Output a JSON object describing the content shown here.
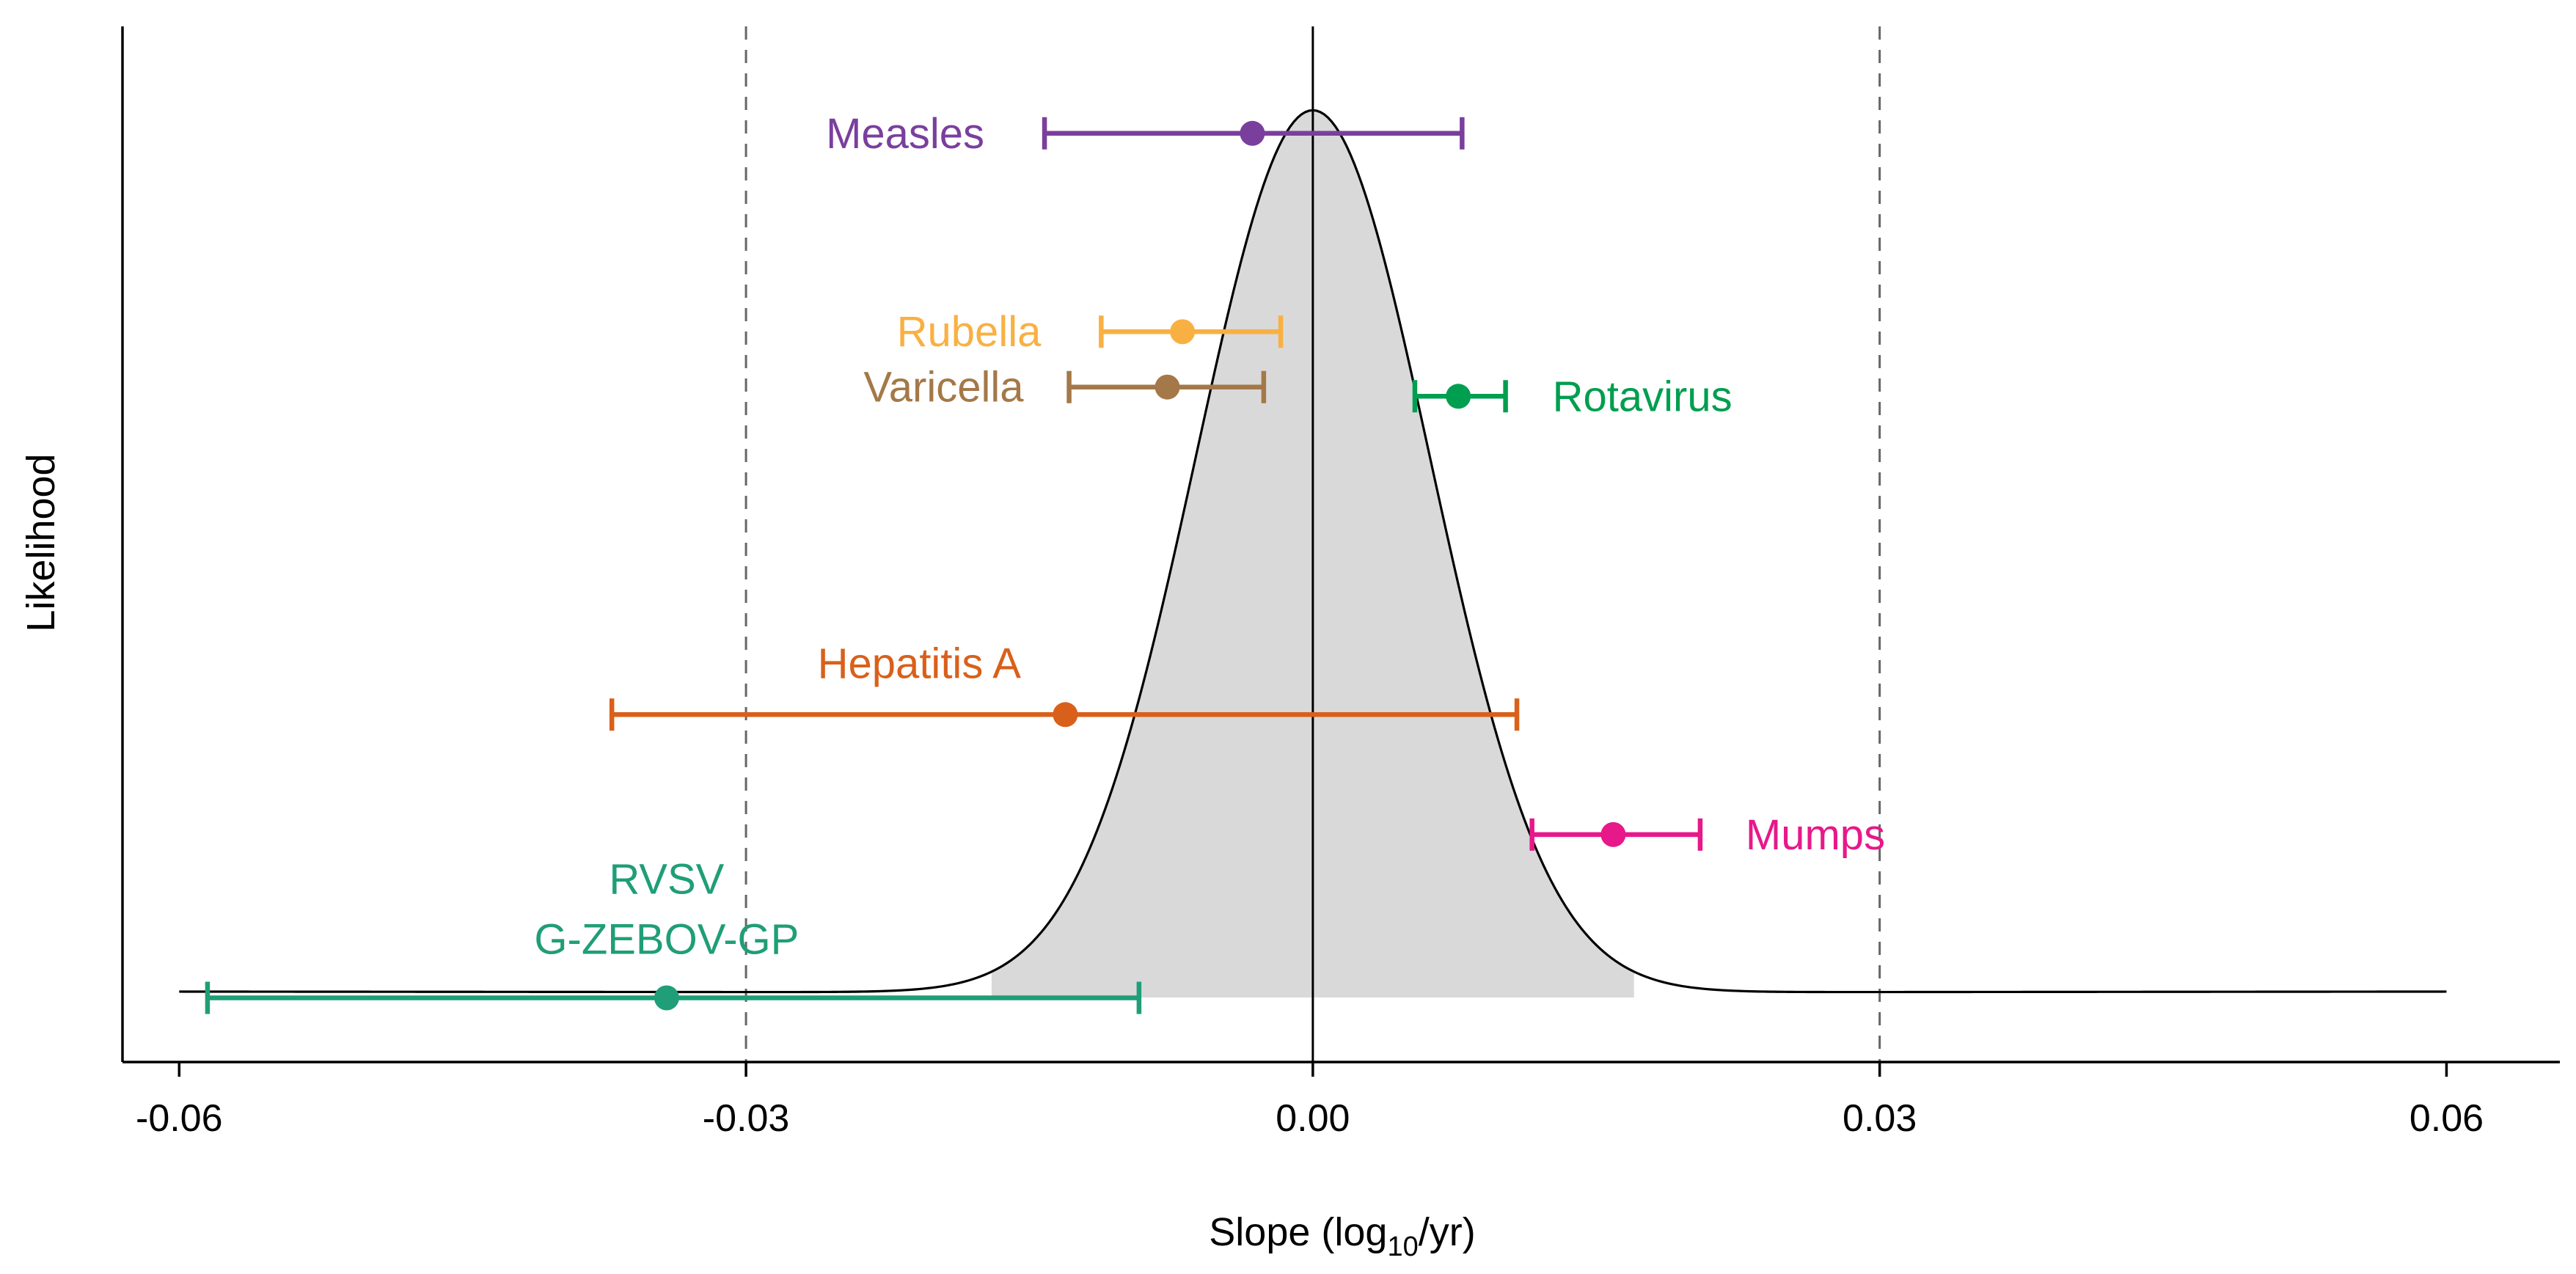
{
  "chart_data": {
    "type": "scatter",
    "title": "",
    "xlabel": {
      "prefix": "Slope (log",
      "sub": "10",
      "suffix": "/yr)"
    },
    "ylabel": "Likelihood",
    "xlim": [
      -0.063,
      0.066
    ],
    "x_ticks": [
      -0.06,
      -0.03,
      0.0,
      0.03,
      0.06
    ],
    "x_tick_labels": [
      "-0.06",
      "-0.03",
      "0.00",
      "0.03",
      "0.06"
    ],
    "reference_lines": [
      {
        "x": -0.03,
        "style": "dashed"
      },
      {
        "x": 0.0,
        "style": "solid"
      },
      {
        "x": 0.03,
        "style": "dashed"
      }
    ],
    "density_curve": {
      "description_free": true,
      "shaded_interval": [
        -0.017,
        0.017
      ],
      "fill_color": "#d9d9d9",
      "x_range": [
        -0.06,
        0.06
      ],
      "peak_x": 0.0,
      "main_sd": 0.0062,
      "tail_floor_relative": 0.004
    },
    "series": [
      {
        "name": "Measles",
        "x": -0.0032,
        "lo": -0.0142,
        "hi": 0.0079,
        "level": 0.935,
        "color": "#7a3f9d"
      },
      {
        "name": "Rubella",
        "x": -0.0069,
        "lo": -0.0112,
        "hi": -0.0017,
        "level": 0.72,
        "color": "#f9b043"
      },
      {
        "name": "Varicella",
        "x": -0.0077,
        "lo": -0.0129,
        "hi": -0.0026,
        "level": 0.66,
        "color": "#a47848"
      },
      {
        "name": "Rotavirus",
        "x": 0.0077,
        "lo": 0.0054,
        "hi": 0.0102,
        "level": 0.65,
        "color": "#009e4f"
      },
      {
        "name": "Hepatitis A",
        "x": -0.0131,
        "lo": -0.0371,
        "hi": 0.0108,
        "level": 0.305,
        "color": "#d9601a"
      },
      {
        "name": "Mumps",
        "x": 0.0159,
        "lo": 0.0116,
        "hi": 0.0205,
        "level": 0.175,
        "color": "#e7188a"
      },
      {
        "name": "RVSV G-ZEBOV-GP",
        "label_lines": [
          "RVSV",
          "G-ZEBOV-GP"
        ],
        "x": -0.0342,
        "lo": -0.0585,
        "hi": -0.0092,
        "level": -0.002,
        "color": "#1f9e77"
      }
    ]
  }
}
